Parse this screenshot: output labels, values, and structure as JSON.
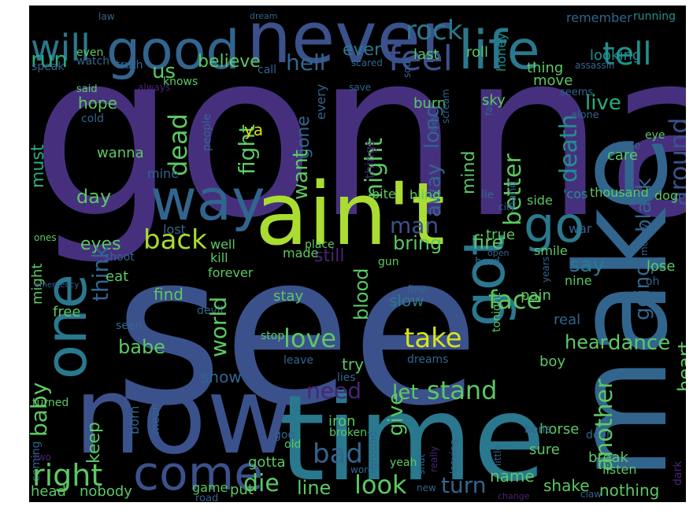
{
  "palette": {
    "background": "#000000",
    "deep_purple": "#46307e",
    "purple": "#482475",
    "indigo": "#3b518b",
    "blue": "#32658e",
    "steel_blue": "#2a788e",
    "teal": "#21908d",
    "sea_green": "#27ad81",
    "green": "#5cc863",
    "lime": "#aadc32",
    "yellow": "#d8e219"
  },
  "words": [
    {
      "text": "gonna",
      "c": "deep_purple"
    },
    {
      "text": "see",
      "c": "indigo"
    },
    {
      "text": "make",
      "c": "blue"
    },
    {
      "text": "time",
      "c": "steel_blue"
    },
    {
      "text": "now",
      "c": "indigo"
    },
    {
      "text": "ain't",
      "c": "lime"
    },
    {
      "text": "never",
      "c": "indigo"
    },
    {
      "text": "good",
      "c": "blue"
    },
    {
      "text": "life",
      "c": "steel_blue"
    },
    {
      "text": "one",
      "c": "steel_blue"
    },
    {
      "text": "way",
      "c": "blue"
    },
    {
      "text": "got",
      "c": "steel_blue"
    },
    {
      "text": "go",
      "c": "steel_blue"
    },
    {
      "text": "come",
      "c": "indigo"
    },
    {
      "text": "will",
      "c": "steel_blue"
    },
    {
      "text": "tell",
      "c": "teal"
    },
    {
      "text": "feel",
      "c": "indigo"
    },
    {
      "text": "rock",
      "c": "steel_blue"
    },
    {
      "text": "run",
      "c": "sea_green"
    },
    {
      "text": "us",
      "c": "green"
    },
    {
      "text": "believe",
      "c": "green"
    },
    {
      "text": "hell",
      "c": "blue"
    },
    {
      "text": "ever",
      "c": "steel_blue"
    },
    {
      "text": "last",
      "c": "green"
    },
    {
      "text": "roll",
      "c": "green"
    },
    {
      "text": "honey",
      "c": "teal"
    },
    {
      "text": "remember",
      "c": "blue"
    },
    {
      "text": "running",
      "c": "teal"
    },
    {
      "text": "law",
      "c": "blue"
    },
    {
      "text": "dream",
      "c": "blue"
    },
    {
      "text": "looking",
      "c": "teal"
    },
    {
      "text": "thing",
      "c": "green"
    },
    {
      "text": "move",
      "c": "green"
    },
    {
      "text": "seems",
      "c": "blue"
    },
    {
      "text": "assassin",
      "c": "blue"
    },
    {
      "text": "speak",
      "c": "blue"
    },
    {
      "text": "watch",
      "c": "blue"
    },
    {
      "text": "truth",
      "c": "blue"
    },
    {
      "text": "call",
      "c": "blue"
    },
    {
      "text": "scared",
      "c": "blue"
    },
    {
      "text": "soul",
      "c": "blue"
    },
    {
      "text": "even",
      "c": "green"
    },
    {
      "text": "around",
      "c": "indigo"
    },
    {
      "text": "death",
      "c": "teal"
    },
    {
      "text": "live",
      "c": "sea_green"
    },
    {
      "text": "better",
      "c": "green"
    },
    {
      "text": "mind",
      "c": "green"
    },
    {
      "text": "away",
      "c": "blue"
    },
    {
      "text": "long",
      "c": "blue"
    },
    {
      "text": "night",
      "c": "green"
    },
    {
      "text": "gone",
      "c": "blue"
    },
    {
      "text": "every",
      "c": "blue"
    },
    {
      "text": "want",
      "c": "green"
    },
    {
      "text": "fight",
      "c": "green"
    },
    {
      "text": "dead",
      "c": "green"
    },
    {
      "text": "must",
      "c": "sea_green"
    },
    {
      "text": "might",
      "c": "green"
    },
    {
      "text": "said",
      "c": "green"
    },
    {
      "text": "hope",
      "c": "green"
    },
    {
      "text": "cold",
      "c": "blue"
    },
    {
      "text": "always",
      "c": "purple"
    },
    {
      "text": "knows",
      "c": "green"
    },
    {
      "text": "people",
      "c": "blue"
    },
    {
      "text": "ya",
      "c": "yellow"
    },
    {
      "text": "wanna",
      "c": "green"
    },
    {
      "text": "mine",
      "c": "blue"
    },
    {
      "text": "things",
      "c": "purple"
    },
    {
      "text": "burn",
      "c": "green"
    },
    {
      "text": "save",
      "c": "blue"
    },
    {
      "text": "scream",
      "c": "blue"
    },
    {
      "text": "hey",
      "c": "blue"
    },
    {
      "text": "fall",
      "c": "blue"
    },
    {
      "text": "sky",
      "c": "green"
    },
    {
      "text": "alone",
      "c": "blue"
    },
    {
      "text": "care",
      "c": "green"
    },
    {
      "text": "stone",
      "c": "blue"
    },
    {
      "text": "eye",
      "c": "green"
    },
    {
      "text": "dog",
      "c": "green"
    },
    {
      "text": "man",
      "c": "indigo"
    },
    {
      "text": "day",
      "c": "green"
    },
    {
      "text": "bite",
      "c": "green"
    },
    {
      "text": "blind",
      "c": "green"
    },
    {
      "text": "lie",
      "c": "blue"
    },
    {
      "text": "city",
      "c": "blue"
    },
    {
      "text": "hand",
      "c": "blue"
    },
    {
      "text": "side",
      "c": "green"
    },
    {
      "text": "'cos",
      "c": "teal"
    },
    {
      "text": "thousand",
      "c": "green"
    },
    {
      "text": "going",
      "c": "blue"
    },
    {
      "text": "black",
      "c": "blue"
    },
    {
      "text": "back",
      "c": "lime"
    },
    {
      "text": "eyes",
      "c": "green"
    },
    {
      "text": "lost",
      "c": "blue"
    },
    {
      "text": "well",
      "c": "green"
    },
    {
      "text": "kill",
      "c": "green"
    },
    {
      "text": "ones",
      "c": "green"
    },
    {
      "text": "shoot",
      "c": "blue"
    },
    {
      "text": "fire",
      "c": "green"
    },
    {
      "text": "true",
      "c": "green"
    },
    {
      "text": "smile",
      "c": "green"
    },
    {
      "text": "open",
      "c": "blue"
    },
    {
      "text": "war",
      "c": "blue"
    },
    {
      "text": "money",
      "c": "blue"
    },
    {
      "text": "say",
      "c": "steel_blue"
    },
    {
      "text": "lose",
      "c": "green"
    },
    {
      "text": "oh",
      "c": "blue"
    },
    {
      "text": "nine",
      "c": "green"
    },
    {
      "text": "pain",
      "c": "green"
    },
    {
      "text": "years",
      "c": "blue"
    },
    {
      "text": "hard",
      "c": "blue"
    },
    {
      "text": "bring",
      "c": "green"
    },
    {
      "text": "still",
      "c": "purple"
    },
    {
      "text": "made",
      "c": "green"
    },
    {
      "text": "place",
      "c": "green"
    },
    {
      "text": "gun",
      "c": "green"
    },
    {
      "text": "blood",
      "c": "green"
    },
    {
      "text": "forever",
      "c": "green"
    },
    {
      "text": "think",
      "c": "blue"
    },
    {
      "text": "eat",
      "c": "green"
    },
    {
      "text": "emergency",
      "c": "blue"
    },
    {
      "text": "find",
      "c": "green"
    },
    {
      "text": "devil",
      "c": "blue"
    },
    {
      "text": "stay",
      "c": "green"
    },
    {
      "text": "fine",
      "c": "blue"
    },
    {
      "text": "slow",
      "c": "steel_blue"
    },
    {
      "text": "face",
      "c": "green"
    },
    {
      "text": "free",
      "c": "green"
    },
    {
      "text": "seen",
      "c": "blue"
    },
    {
      "text": "world",
      "c": "green"
    },
    {
      "text": "babe",
      "c": "green"
    },
    {
      "text": "love",
      "c": "green"
    },
    {
      "text": "stop",
      "c": "green"
    },
    {
      "text": "leave",
      "c": "blue"
    },
    {
      "text": "take",
      "c": "yellow"
    },
    {
      "text": "tonight",
      "c": "green"
    },
    {
      "text": "real",
      "c": "blue"
    },
    {
      "text": "hear",
      "c": "green"
    },
    {
      "text": "dance",
      "c": "green"
    },
    {
      "text": "show",
      "c": "blue"
    },
    {
      "text": "try",
      "c": "green"
    },
    {
      "text": "lies",
      "c": "blue"
    },
    {
      "text": "dreams",
      "c": "blue"
    },
    {
      "text": "boy",
      "c": "green"
    },
    {
      "text": "need",
      "c": "purple"
    },
    {
      "text": "let",
      "c": "green"
    },
    {
      "text": "stand",
      "c": "green"
    },
    {
      "text": "another",
      "c": "green"
    },
    {
      "text": "heart",
      "c": "green"
    },
    {
      "text": "crazy",
      "c": "purple"
    },
    {
      "text": "red",
      "c": "blue"
    },
    {
      "text": "light",
      "c": "blue"
    },
    {
      "text": "turned",
      "c": "green"
    },
    {
      "text": "born",
      "c": "blue"
    },
    {
      "text": "baby",
      "c": "green"
    },
    {
      "text": "coming",
      "c": "blue"
    },
    {
      "text": "keep",
      "c": "green"
    },
    {
      "text": "mean",
      "c": "blue"
    },
    {
      "text": "iron",
      "c": "green"
    },
    {
      "text": "broken",
      "c": "green"
    },
    {
      "text": "give",
      "c": "green"
    },
    {
      "text": "ground",
      "c": "blue"
    },
    {
      "text": "horse",
      "c": "green"
    },
    {
      "text": "door",
      "c": "blue"
    },
    {
      "text": "bone",
      "c": "blue"
    },
    {
      "text": "bad",
      "c": "blue"
    },
    {
      "text": "god",
      "c": "blue"
    },
    {
      "text": "old",
      "c": "green"
    },
    {
      "text": "yeah",
      "c": "green"
    },
    {
      "text": "shut",
      "c": "blue"
    },
    {
      "text": "really",
      "c": "purple"
    },
    {
      "text": "leaving",
      "c": "blue"
    },
    {
      "text": "little",
      "c": "blue"
    },
    {
      "text": "sure",
      "c": "green"
    },
    {
      "text": "break",
      "c": "green"
    },
    {
      "text": "listen",
      "c": "green"
    },
    {
      "text": "dark",
      "c": "purple"
    },
    {
      "text": "right",
      "c": "green"
    },
    {
      "text": "two",
      "c": "purple"
    },
    {
      "text": "gotta",
      "c": "green"
    },
    {
      "text": "die",
      "c": "green"
    },
    {
      "text": "line",
      "c": "green"
    },
    {
      "text": "look",
      "c": "green"
    },
    {
      "text": "word",
      "c": "blue"
    },
    {
      "text": "turn",
      "c": "blue"
    },
    {
      "text": "name",
      "c": "green"
    },
    {
      "text": "shake",
      "c": "green"
    },
    {
      "text": "nothing",
      "c": "green"
    },
    {
      "text": "head",
      "c": "green"
    },
    {
      "text": "nobody",
      "c": "green"
    },
    {
      "text": "game",
      "c": "green"
    },
    {
      "text": "road",
      "c": "blue"
    },
    {
      "text": "put",
      "c": "green"
    },
    {
      "text": "new",
      "c": "blue"
    },
    {
      "text": "change",
      "c": "purple"
    },
    {
      "text": "claw",
      "c": "blue"
    }
  ]
}
